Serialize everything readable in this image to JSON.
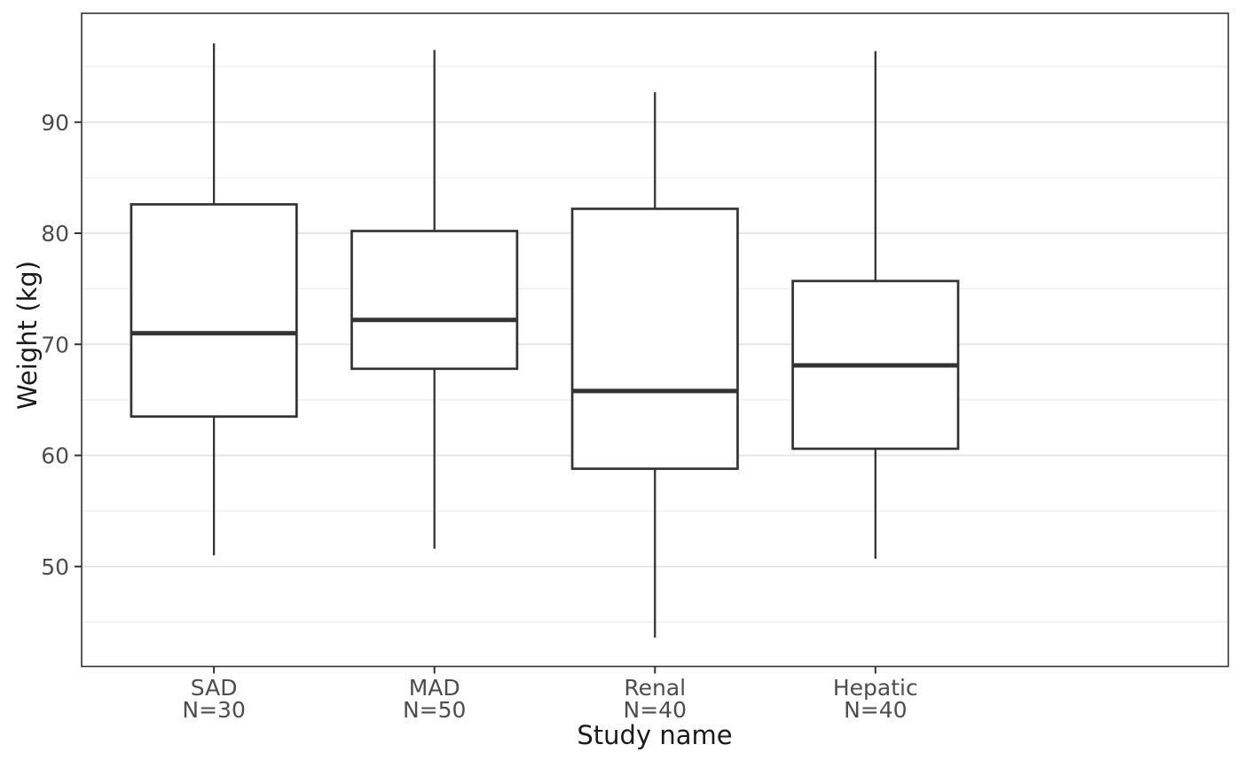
{
  "style": {
    "background": "#ffffff",
    "panel_border": "#333333",
    "grid_major": "#e3e3e3",
    "grid_minor": "#f0f0f0",
    "box_stroke": "#333333",
    "box_fill": "#ffffff",
    "tick_mark": "#333333",
    "tick_label": "#4d4d4d",
    "axis_title": "#1a1a1a"
  },
  "chart_data": {
    "type": "boxplot",
    "title": "",
    "xlabel": "Study name",
    "ylabel": "Weight (kg)",
    "categories": [
      "SAD",
      "MAD",
      "Renal",
      "Hepatic"
    ],
    "series": [
      {
        "name": "SAD",
        "n": 30,
        "label_line2": "N=30",
        "min": 51.0,
        "q1": 63.5,
        "median": 71.0,
        "q3": 82.6,
        "max": 97.1,
        "outliers": []
      },
      {
        "name": "MAD",
        "n": 50,
        "label_line2": "N=50",
        "min": 51.6,
        "q1": 67.8,
        "median": 72.2,
        "q3": 80.2,
        "max": 96.5,
        "outliers": []
      },
      {
        "name": "Renal",
        "n": 40,
        "label_line2": "N=40",
        "min": 43.6,
        "q1": 58.8,
        "median": 65.8,
        "q3": 82.2,
        "max": 92.7,
        "outliers": []
      },
      {
        "name": "Hepatic",
        "n": 40,
        "label_line2": "N=40",
        "min": 50.7,
        "q1": 60.6,
        "median": 68.1,
        "q3": 75.7,
        "max": 96.4,
        "outliers": []
      }
    ],
    "y_ticks": [
      50,
      60,
      70,
      80,
      90
    ],
    "y_minor_ticks": [
      45,
      55,
      65,
      75,
      85,
      95
    ],
    "ylim": [
      41.0,
      99.8
    ],
    "grid": true,
    "legend": false
  }
}
